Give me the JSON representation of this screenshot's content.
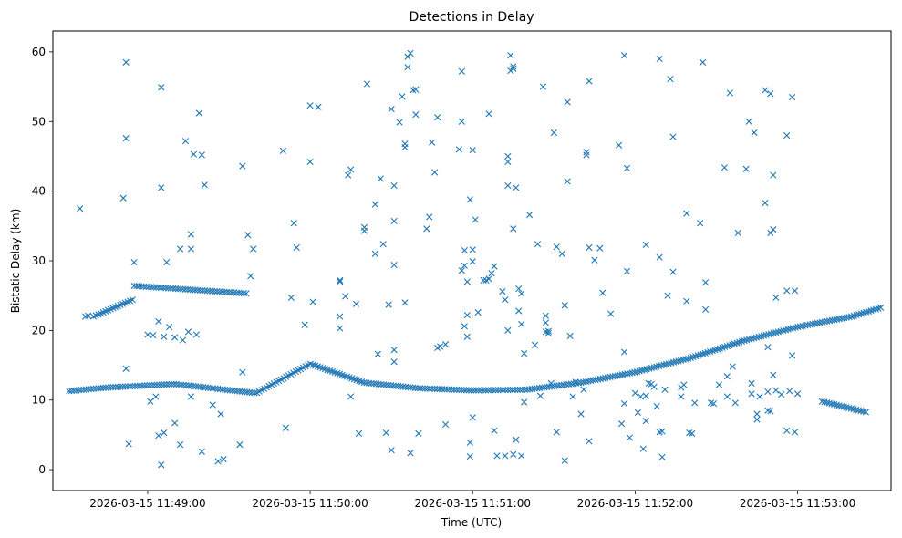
{
  "chart_data": {
    "type": "scatter",
    "title": "Detections in Delay",
    "xlabel": "Time (UTC)",
    "ylabel": "Bistatic Delay (km)",
    "marker": "x",
    "color": "#1f77b4",
    "grid": false,
    "x_unit": "seconds after 2026-03-15 11:48:00",
    "xlim": [
      25.0,
      334.5
    ],
    "ylim": [
      -3.0,
      63.0
    ],
    "x_ticks": [
      {
        "value": 60,
        "label": "2026-03-15 11:49:00"
      },
      {
        "value": 120,
        "label": "2026-03-15 11:50:00"
      },
      {
        "value": 180,
        "label": "2026-03-15 11:51:00"
      },
      {
        "value": 240,
        "label": "2026-03-15 11:52:00"
      },
      {
        "value": 300,
        "label": "2026-03-15 11:53:00"
      }
    ],
    "y_ticks": [
      0,
      10,
      20,
      30,
      40,
      50,
      60
    ],
    "track_series": [
      {
        "name": "track-main",
        "t_range": [
          31,
          331
        ],
        "step": 0.9,
        "control_t": [
          31,
          45,
          70,
          100,
          120,
          140,
          160,
          180,
          200,
          220,
          240,
          260,
          280,
          300,
          320,
          331
        ],
        "control_y": [
          11.3,
          11.8,
          12.3,
          11.0,
          15.2,
          12.5,
          11.7,
          11.4,
          11.5,
          12.5,
          14.0,
          16.0,
          18.5,
          20.5,
          22.0,
          23.3
        ]
      },
      {
        "name": "track-upper-a",
        "t_range": [
          40,
          55
        ],
        "step": 0.9,
        "control_t": [
          40,
          55
        ],
        "control_y": [
          22.0,
          24.5
        ]
      },
      {
        "name": "track-upper-b",
        "t_range": [
          55,
          97
        ],
        "step": 0.9,
        "control_t": [
          55,
          97
        ],
        "control_y": [
          26.4,
          25.3
        ]
      },
      {
        "name": "track-low-right",
        "t_range": [
          309,
          326
        ],
        "step": 0.9,
        "control_t": [
          309,
          326
        ],
        "control_y": [
          9.8,
          8.2
        ]
      }
    ],
    "scatter_points": [
      [
        35,
        37.5
      ],
      [
        37,
        22.0
      ],
      [
        38,
        22.1
      ],
      [
        52,
        58.5
      ],
      [
        52,
        47.6
      ],
      [
        51,
        39.0
      ],
      [
        52,
        14.5
      ],
      [
        53,
        3.7
      ],
      [
        55,
        29.8
      ],
      [
        65,
        54.9
      ],
      [
        65,
        40.5
      ],
      [
        67,
        29.8
      ],
      [
        72,
        31.7
      ],
      [
        76,
        33.8
      ],
      [
        76,
        31.7
      ],
      [
        74,
        47.2
      ],
      [
        77,
        45.3
      ],
      [
        79,
        51.2
      ],
      [
        80,
        45.2
      ],
      [
        81,
        40.9
      ],
      [
        60,
        19.4
      ],
      [
        62,
        19.3
      ],
      [
        64,
        21.3
      ],
      [
        66,
        19.1
      ],
      [
        68,
        20.5
      ],
      [
        70,
        19.0
      ],
      [
        73,
        18.6
      ],
      [
        75,
        19.8
      ],
      [
        78,
        19.4
      ],
      [
        61,
        9.8
      ],
      [
        63,
        10.5
      ],
      [
        64,
        4.9
      ],
      [
        65,
        0.7
      ],
      [
        66,
        5.3
      ],
      [
        70,
        6.7
      ],
      [
        72,
        3.6
      ],
      [
        76,
        10.5
      ],
      [
        80,
        2.6
      ],
      [
        84,
        9.3
      ],
      [
        86,
        1.2
      ],
      [
        87,
        8.0
      ],
      [
        88,
        1.5
      ],
      [
        94,
        3.6
      ],
      [
        95,
        43.6
      ],
      [
        97,
        33.7
      ],
      [
        99,
        31.7
      ],
      [
        98,
        27.8
      ],
      [
        95,
        14.0
      ],
      [
        110,
        45.8
      ],
      [
        111,
        6.0
      ],
      [
        113,
        24.7
      ],
      [
        114,
        35.4
      ],
      [
        115,
        31.9
      ],
      [
        118,
        20.8
      ],
      [
        120,
        52.3
      ],
      [
        120,
        44.2
      ],
      [
        121,
        24.1
      ],
      [
        123,
        52.1
      ],
      [
        131,
        27.0
      ],
      [
        131,
        27.2
      ],
      [
        131,
        20.3
      ],
      [
        131,
        22.0
      ],
      [
        133,
        24.9
      ],
      [
        134,
        42.3
      ],
      [
        135,
        43.1
      ],
      [
        135,
        10.5
      ],
      [
        137,
        23.8
      ],
      [
        138,
        5.2
      ],
      [
        140,
        34.8
      ],
      [
        140,
        34.3
      ],
      [
        141,
        55.4
      ],
      [
        144,
        38.1
      ],
      [
        144,
        31.0
      ],
      [
        145,
        16.6
      ],
      [
        147,
        32.4
      ],
      [
        146,
        41.8
      ],
      [
        148,
        5.3
      ],
      [
        149,
        23.7
      ],
      [
        150,
        51.8
      ],
      [
        151,
        40.8
      ],
      [
        151,
        35.7
      ],
      [
        151,
        29.4
      ],
      [
        151,
        17.2
      ],
      [
        151,
        15.5
      ],
      [
        150,
        2.8
      ],
      [
        153,
        49.9
      ],
      [
        154,
        53.6
      ],
      [
        155,
        46.3
      ],
      [
        155,
        46.8
      ],
      [
        156,
        57.8
      ],
      [
        156,
        59.3
      ],
      [
        157,
        59.8
      ],
      [
        158,
        54.5
      ],
      [
        159,
        54.6
      ],
      [
        159,
        51.0
      ],
      [
        155,
        24.0
      ],
      [
        157,
        2.4
      ],
      [
        160,
        5.2
      ],
      [
        163,
        34.6
      ],
      [
        164,
        36.3
      ],
      [
        165,
        47.0
      ],
      [
        166,
        42.7
      ],
      [
        167,
        50.6
      ],
      [
        167,
        17.5
      ],
      [
        168,
        17.7
      ],
      [
        170,
        18.0
      ],
      [
        170,
        6.5
      ],
      [
        175,
        46.0
      ],
      [
        176,
        57.2
      ],
      [
        176,
        50.0
      ],
      [
        176,
        28.6
      ],
      [
        177,
        31.5
      ],
      [
        177,
        29.3
      ],
      [
        178,
        27.0
      ],
      [
        177,
        20.6
      ],
      [
        178,
        19.1
      ],
      [
        178,
        22.2
      ],
      [
        179,
        3.9
      ],
      [
        179,
        1.9
      ],
      [
        179,
        38.8
      ],
      [
        180,
        31.6
      ],
      [
        180,
        29.9
      ],
      [
        180,
        45.9
      ],
      [
        181,
        35.9
      ],
      [
        182,
        22.6
      ],
      [
        180,
        7.5
      ],
      [
        184,
        27.2
      ],
      [
        185,
        27.2
      ],
      [
        186,
        27.4
      ],
      [
        186,
        51.1
      ],
      [
        187,
        28.2
      ],
      [
        188,
        29.2
      ],
      [
        188,
        5.6
      ],
      [
        189,
        2.0
      ],
      [
        191,
        25.6
      ],
      [
        192,
        24.4
      ],
      [
        193,
        44.2
      ],
      [
        193,
        45.0
      ],
      [
        193,
        40.8
      ],
      [
        194,
        59.5
      ],
      [
        194,
        57.3
      ],
      [
        195,
        57.9
      ],
      [
        195,
        57.6
      ],
      [
        195,
        34.6
      ],
      [
        196,
        40.5
      ],
      [
        197,
        26.0
      ],
      [
        197,
        22.8
      ],
      [
        198,
        25.3
      ],
      [
        198,
        20.9
      ],
      [
        199,
        16.7
      ],
      [
        199,
        9.7
      ],
      [
        198,
        2.0
      ],
      [
        195,
        2.2
      ],
      [
        196,
        4.3
      ],
      [
        192,
        2.0
      ],
      [
        193,
        20.0
      ],
      [
        201,
        36.6
      ],
      [
        203,
        17.9
      ],
      [
        204,
        32.4
      ],
      [
        205,
        10.6
      ],
      [
        206,
        55.0
      ],
      [
        207,
        19.8
      ],
      [
        207,
        22.1
      ],
      [
        207,
        21.1
      ],
      [
        208,
        19.9
      ],
      [
        208,
        19.6
      ],
      [
        209,
        12.4
      ],
      [
        210,
        48.4
      ],
      [
        211,
        32.0
      ],
      [
        211,
        5.4
      ],
      [
        213,
        31.0
      ],
      [
        214,
        23.6
      ],
      [
        214,
        1.3
      ],
      [
        215,
        52.8
      ],
      [
        215,
        41.4
      ],
      [
        216,
        19.2
      ],
      [
        217,
        10.5
      ],
      [
        218,
        12.6
      ],
      [
        220,
        8.0
      ],
      [
        221,
        11.5
      ],
      [
        222,
        45.6
      ],
      [
        222,
        45.2
      ],
      [
        223,
        31.9
      ],
      [
        223,
        55.8
      ],
      [
        223,
        4.1
      ],
      [
        225,
        30.1
      ],
      [
        227,
        31.8
      ],
      [
        228,
        25.4
      ],
      [
        231,
        22.4
      ],
      [
        234,
        46.6
      ],
      [
        235,
        6.6
      ],
      [
        236,
        9.5
      ],
      [
        236,
        16.9
      ],
      [
        236,
        59.5
      ],
      [
        237,
        43.3
      ],
      [
        237,
        28.5
      ],
      [
        238,
        4.6
      ],
      [
        240,
        11.0
      ],
      [
        241,
        8.2
      ],
      [
        242,
        10.5
      ],
      [
        243,
        3.0
      ],
      [
        244,
        32.3
      ],
      [
        244,
        10.6
      ],
      [
        244,
        7.0
      ],
      [
        245,
        12.4
      ],
      [
        246,
        12.3
      ],
      [
        247,
        11.9
      ],
      [
        248,
        9.1
      ],
      [
        249,
        30.5
      ],
      [
        249,
        59.0
      ],
      [
        249,
        5.4
      ],
      [
        250,
        1.8
      ],
      [
        250,
        5.5
      ],
      [
        251,
        11.5
      ],
      [
        252,
        25.0
      ],
      [
        253,
        56.1
      ],
      [
        254,
        47.8
      ],
      [
        254,
        28.4
      ],
      [
        257,
        10.5
      ],
      [
        258,
        12.2
      ],
      [
        259,
        36.8
      ],
      [
        259,
        24.2
      ],
      [
        260,
        5.3
      ],
      [
        261,
        5.2
      ],
      [
        262,
        9.6
      ],
      [
        264,
        35.4
      ],
      [
        265,
        58.5
      ],
      [
        266,
        26.9
      ],
      [
        266,
        23.0
      ],
      [
        268,
        9.6
      ],
      [
        269,
        9.5
      ],
      [
        271,
        12.2
      ],
      [
        273,
        43.4
      ],
      [
        274,
        13.4
      ],
      [
        274,
        10.5
      ],
      [
        275,
        54.1
      ],
      [
        276,
        14.8
      ],
      [
        277,
        9.6
      ],
      [
        278,
        34.0
      ],
      [
        281,
        43.2
      ],
      [
        282,
        50.0
      ],
      [
        283,
        12.4
      ],
      [
        284,
        48.4
      ],
      [
        286,
        10.5
      ],
      [
        288,
        54.5
      ],
      [
        288,
        38.3
      ],
      [
        289,
        17.6
      ],
      [
        290,
        54.0
      ],
      [
        291,
        42.3
      ],
      [
        291,
        34.5
      ],
      [
        290,
        34.0
      ],
      [
        292,
        24.7
      ],
      [
        296,
        48.0
      ],
      [
        296,
        5.6
      ],
      [
        298,
        53.5
      ],
      [
        298,
        16.4
      ],
      [
        299,
        5.4
      ],
      [
        300,
        10.9
      ],
      [
        291,
        13.6
      ],
      [
        289,
        11.2
      ],
      [
        292,
        11.4
      ],
      [
        289,
        8.5
      ],
      [
        290,
        8.4
      ],
      [
        283,
        10.9
      ],
      [
        285,
        8.0
      ],
      [
        296,
        25.7
      ],
      [
        299,
        25.7
      ],
      [
        297,
        11.3
      ],
      [
        294,
        10.8
      ],
      [
        257,
        11.8
      ],
      [
        285,
        7.2
      ]
    ]
  }
}
